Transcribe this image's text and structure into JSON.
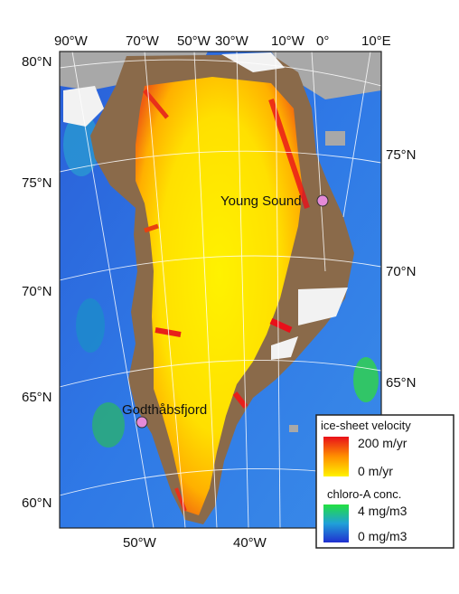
{
  "axes": {
    "top_labels": [
      "90°W",
      "70°W",
      "50°W",
      "30°W",
      "10°W",
      "0°",
      "10°E"
    ],
    "left_labels": [
      "80°N",
      "75°N",
      "70°N",
      "65°N",
      "60°N"
    ],
    "right_labels": [
      "75°N",
      "70°N",
      "65°N"
    ],
    "bottom_labels": [
      "50°W",
      "40°W"
    ]
  },
  "places": [
    {
      "name": "Young Sound"
    },
    {
      "name": "Godthåbsfjord"
    }
  ],
  "legend": {
    "velocity_title": "ice-sheet velocity",
    "velocity_max": "200 m/yr",
    "velocity_min": "0 m/yr",
    "chloro_title": "chloro-A conc.",
    "chloro_max": "4 mg/m3",
    "chloro_min": "0 mg/m3"
  },
  "colors": {
    "ocean": "#2f6fe0",
    "ice_low": "#ffe600",
    "ice_high": "#e8101a",
    "land": "#8a6a4a",
    "marker": "#e58ad8"
  }
}
